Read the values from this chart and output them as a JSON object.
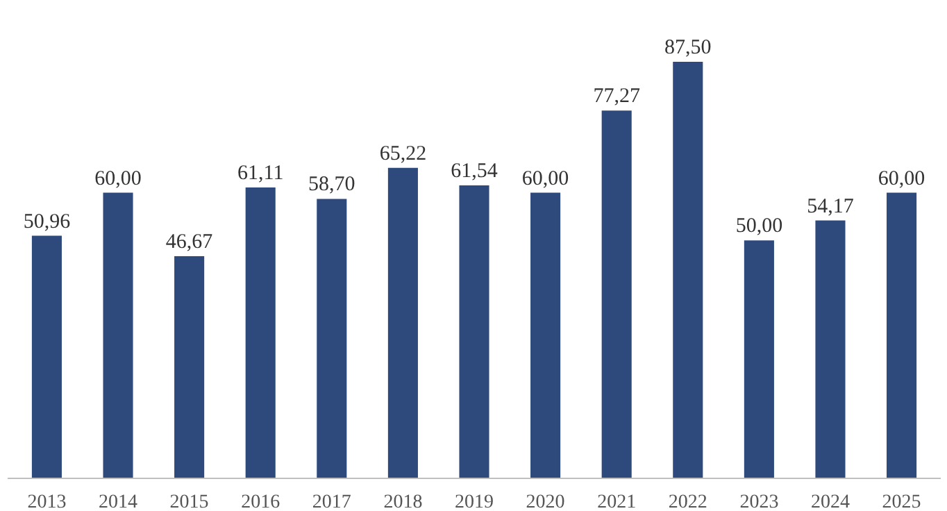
{
  "chart_data": {
    "type": "bar",
    "categories": [
      "2013",
      "2014",
      "2015",
      "2016",
      "2017",
      "2018",
      "2019",
      "2020",
      "2021",
      "2022",
      "2023",
      "2024",
      "2025"
    ],
    "values": [
      50.96,
      60.0,
      46.67,
      61.11,
      58.7,
      65.22,
      61.54,
      60.0,
      77.27,
      87.5,
      50.0,
      54.17,
      60.0
    ],
    "value_labels": [
      "50,96",
      "60,00",
      "46,67",
      "61,11",
      "58,70",
      "65,22",
      "61,54",
      "60,00",
      "77,27",
      "87,50",
      "50,00",
      "54,17",
      "60,00"
    ],
    "color": "#2e4a7d",
    "tick_labels": "x"
  }
}
